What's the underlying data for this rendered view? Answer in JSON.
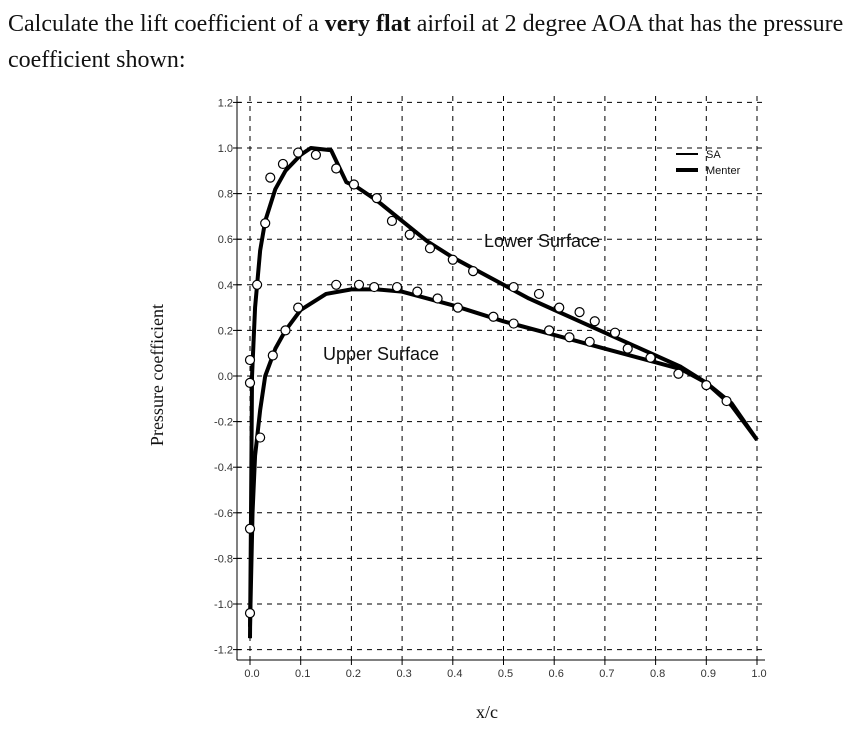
{
  "question": {
    "before": "Calculate the lift coefficient of a ",
    "bold": "very flat",
    "after": " airfoil at 2 degree AOA that has the pressure coefficient shown:"
  },
  "chart_data": {
    "type": "line",
    "xlabel": "x/c",
    "ylabel": "Pressure coefficient",
    "xlim": [
      0.0,
      1.0
    ],
    "ylim": [
      -1.2,
      1.2
    ],
    "grid": true,
    "xticks": [
      "0.0",
      "0.1",
      "0.2",
      "0.3",
      "0.4",
      "0.5",
      "0.6",
      "0.7",
      "0.8",
      "0.9",
      "1.0"
    ],
    "yticks": [
      "1.2",
      "1.0",
      "0.8",
      "0.6",
      "0.4",
      "0.2",
      "0.0",
      "-0.2",
      "-0.4",
      "-0.6",
      "-0.8",
      "-1.0",
      "-1.2"
    ],
    "legend": {
      "position": "top-right",
      "entries": [
        "SA",
        "Menter"
      ]
    },
    "annotations": {
      "lower": "Lower Surface",
      "upper": "Upper Surface"
    },
    "curves": {
      "lower": {
        "x": [
          0.0,
          0.002,
          0.004,
          0.01,
          0.02,
          0.03,
          0.05,
          0.07,
          0.1,
          0.12,
          0.16,
          0.175,
          0.19,
          0.21,
          0.25,
          0.3,
          0.35,
          0.4,
          0.45,
          0.5,
          0.55,
          0.6,
          0.65,
          0.7,
          0.75,
          0.8,
          0.85,
          0.9,
          0.95,
          1.0
        ],
        "y": [
          -1.15,
          -0.6,
          0.0,
          0.3,
          0.55,
          0.68,
          0.82,
          0.9,
          0.97,
          1.0,
          0.99,
          0.92,
          0.85,
          0.83,
          0.77,
          0.68,
          0.59,
          0.52,
          0.46,
          0.4,
          0.34,
          0.29,
          0.24,
          0.19,
          0.14,
          0.09,
          0.04,
          -0.03,
          -0.13,
          -0.28
        ]
      },
      "upper": {
        "x": [
          0.0,
          0.005,
          0.01,
          0.02,
          0.03,
          0.05,
          0.07,
          0.1,
          0.15,
          0.2,
          0.25,
          0.3,
          0.4,
          0.5,
          0.6,
          0.7,
          0.8,
          0.85,
          0.9,
          0.95,
          1.0
        ],
        "y": [
          -1.1,
          -0.6,
          -0.35,
          -0.15,
          0.0,
          0.12,
          0.2,
          0.29,
          0.36,
          0.38,
          0.38,
          0.37,
          0.31,
          0.24,
          0.18,
          0.12,
          0.06,
          0.03,
          -0.03,
          -0.12,
          -0.28
        ]
      }
    },
    "experiment": {
      "lower": {
        "x": [
          0.0,
          0.0,
          0.0,
          0.0,
          0.014,
          0.03,
          0.04,
          0.065,
          0.095,
          0.13,
          0.17,
          0.205,
          0.25,
          0.28,
          0.315,
          0.355,
          0.4,
          0.44,
          0.52,
          0.57,
          0.61,
          0.65,
          0.68,
          0.72,
          0.745,
          0.79,
          0.845,
          0.9,
          0.94
        ],
        "y": [
          -1.04,
          -0.67,
          -0.03,
          0.07,
          0.4,
          0.67,
          0.87,
          0.93,
          0.98,
          0.97,
          0.91,
          0.84,
          0.78,
          0.68,
          0.62,
          0.56,
          0.51,
          0.46,
          0.39,
          0.36,
          0.3,
          0.28,
          0.24,
          0.19,
          0.12,
          0.08,
          0.01,
          -0.04,
          -0.11
        ]
      },
      "upper": {
        "x": [
          0.02,
          0.045,
          0.07,
          0.095,
          0.17,
          0.215,
          0.245,
          0.29,
          0.33,
          0.37,
          0.41,
          0.48,
          0.52,
          0.59,
          0.63,
          0.67
        ],
        "y": [
          -0.27,
          0.09,
          0.2,
          0.3,
          0.4,
          0.4,
          0.39,
          0.39,
          0.37,
          0.34,
          0.3,
          0.26,
          0.23,
          0.2,
          0.17,
          0.15
        ]
      }
    }
  }
}
